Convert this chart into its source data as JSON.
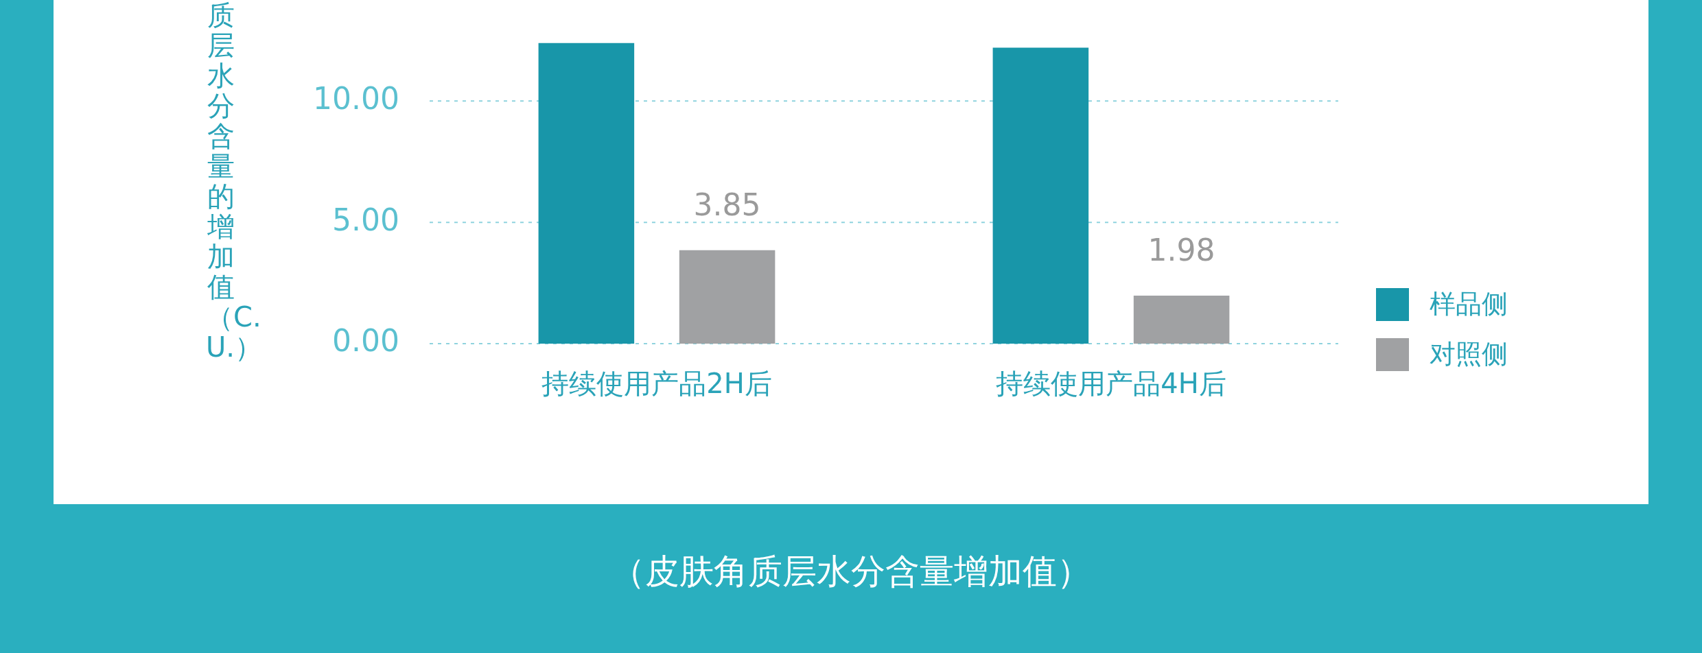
{
  "chart_data": {
    "type": "bar",
    "ylabel": "质层水分含量的增加值（C.U.）",
    "categories": [
      "持续使用产品2H后",
      "持续使用产品4H后"
    ],
    "series": [
      {
        "name": "样品侧",
        "color": "#1896a9",
        "values": [
          12.4,
          12.2
        ],
        "value_labels": [
          null,
          null
        ]
      },
      {
        "name": "对照侧",
        "color": "#a0a1a3",
        "values": [
          3.85,
          1.98
        ],
        "value_labels": [
          "3.85",
          "1.98"
        ]
      }
    ],
    "ylim": [
      0,
      12.4
    ],
    "yticks": [
      {
        "value": 0,
        "label": "0.00"
      },
      {
        "value": 5,
        "label": "5.00"
      },
      {
        "value": 10,
        "label": "10.00"
      }
    ],
    "grid": "y",
    "legend": "right",
    "annotations": [
      "（皮肤角质层水分含量增加值）"
    ]
  }
}
